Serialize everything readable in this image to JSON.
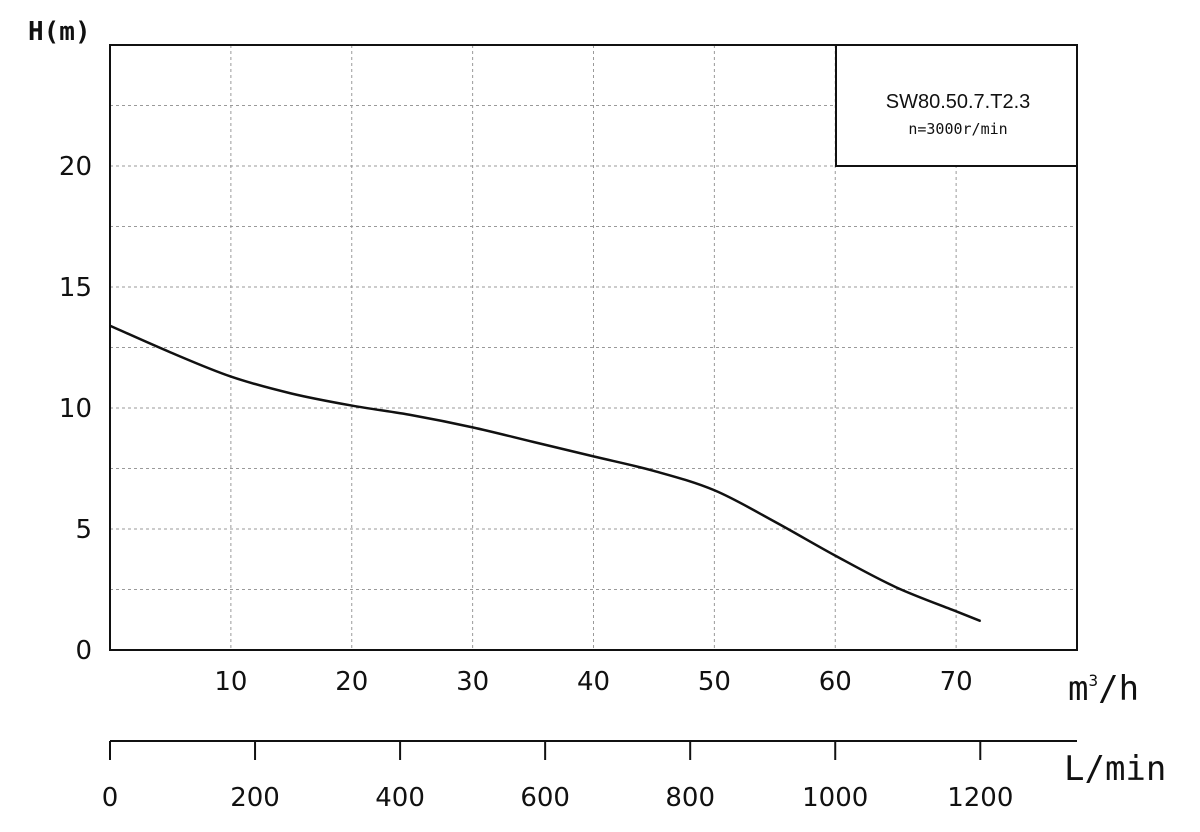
{
  "chart_data": {
    "type": "line",
    "y_axis_label": "H(m)",
    "x_axis_unit_base": "m",
    "x_axis_unit_sup": "3",
    "x_axis_unit_tail": "/h",
    "secondary_axis_label": "L/min",
    "xlim": [
      0,
      80
    ],
    "ylim": [
      0,
      25
    ],
    "x_ticks": [
      10,
      20,
      30,
      40,
      50,
      60,
      70
    ],
    "y_ticks": [
      0,
      5,
      10,
      15,
      20
    ],
    "x_ticks_labels": [
      "10",
      "20",
      "30",
      "40",
      "50",
      "60",
      "70"
    ],
    "y_ticks_labels": [
      "0",
      "5",
      "10",
      "15",
      "20"
    ],
    "secondary_ticks": [
      0,
      200,
      400,
      600,
      800,
      1000,
      1200
    ],
    "secondary_ticks_labels": [
      "0",
      "200",
      "400",
      "600",
      "800",
      "1000",
      "1200"
    ],
    "secondary_scale_per_x": 16.667,
    "grid": true,
    "legend": {
      "placement": "top-right",
      "model": "SW80.50.7.T2.3",
      "speed": "n=3000r/min"
    },
    "series": [
      {
        "x": [
          0,
          5,
          10,
          15,
          20,
          25,
          30,
          35,
          40,
          45,
          50,
          55,
          60,
          65,
          70,
          72
        ],
        "y": [
          13.4,
          12.3,
          11.3,
          10.6,
          10.1,
          9.7,
          9.2,
          8.6,
          8.0,
          7.4,
          6.6,
          5.3,
          3.9,
          2.6,
          1.6,
          1.2
        ]
      }
    ]
  }
}
